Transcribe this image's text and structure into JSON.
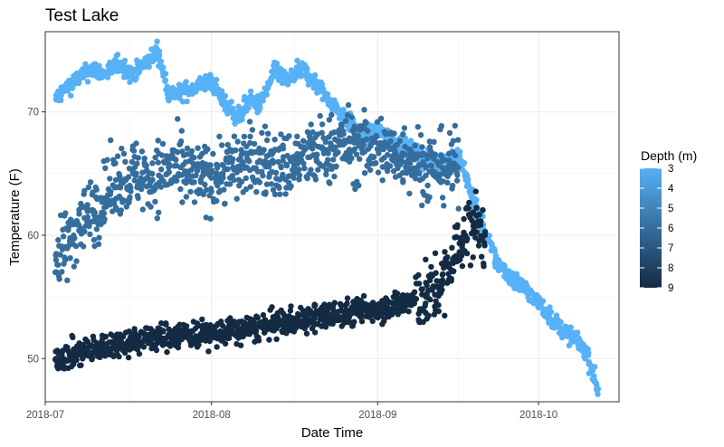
{
  "chart_data": {
    "type": "scatter",
    "title": "Test Lake",
    "xlabel": "Date Time",
    "ylabel": "Temperature (F)",
    "xlim": [
      "2018-07-01",
      "2018-10-16"
    ],
    "ylim": [
      46.5,
      76.5
    ],
    "x_ticks": [
      {
        "date": "2018-07-01",
        "label": "2018-07"
      },
      {
        "date": "2018-08-01",
        "label": "2018-08"
      },
      {
        "date": "2018-09-01",
        "label": "2018-09"
      },
      {
        "date": "2018-10-01",
        "label": "2018-10"
      }
    ],
    "y_ticks": [
      50,
      60,
      70
    ],
    "grid": true,
    "legend": {
      "title": "Depth (m)",
      "position": "right",
      "labels": [
        3,
        4,
        5,
        6,
        7,
        8,
        9
      ],
      "color_low": "#56B1F7",
      "color_high": "#132B43"
    },
    "series": [
      {
        "depth": 3,
        "x": [
          "2018-07-03",
          "2018-07-05",
          "2018-07-08",
          "2018-07-10",
          "2018-07-12",
          "2018-07-15",
          "2018-07-17",
          "2018-07-20",
          "2018-07-22",
          "2018-07-24",
          "2018-07-26",
          "2018-07-29",
          "2018-08-01",
          "2018-08-03",
          "2018-08-06",
          "2018-08-08",
          "2018-08-10",
          "2018-08-13",
          "2018-08-15",
          "2018-08-18",
          "2018-08-20",
          "2018-08-23",
          "2018-08-26",
          "2018-08-29",
          "2018-09-01",
          "2018-09-04",
          "2018-09-07",
          "2018-09-10",
          "2018-09-13",
          "2018-09-16",
          "2018-09-18",
          "2018-09-20",
          "2018-09-23",
          "2018-09-26",
          "2018-09-29",
          "2018-10-02",
          "2018-10-05",
          "2018-10-08",
          "2018-10-10",
          "2018-10-12"
        ],
        "y": [
          71.0,
          72.0,
          73.0,
          73.5,
          73.0,
          74.0,
          73.0,
          74.0,
          75.0,
          71.5,
          71.5,
          72.0,
          72.5,
          71.0,
          69.5,
          71.0,
          70.5,
          73.5,
          72.5,
          73.5,
          72.5,
          71.0,
          69.5,
          68.0,
          68.5,
          67.5,
          67.0,
          66.0,
          66.0,
          66.5,
          64.0,
          61.5,
          58.0,
          56.5,
          55.5,
          54.0,
          52.5,
          51.5,
          50.5,
          47.5
        ]
      },
      {
        "depth": 6,
        "x": [
          "2018-07-03",
          "2018-07-05",
          "2018-07-07",
          "2018-07-10",
          "2018-07-12",
          "2018-07-15",
          "2018-07-18",
          "2018-07-21",
          "2018-07-24",
          "2018-07-27",
          "2018-07-30",
          "2018-08-02",
          "2018-08-05",
          "2018-08-08",
          "2018-08-11",
          "2018-08-14",
          "2018-08-17",
          "2018-08-20",
          "2018-08-23",
          "2018-08-26",
          "2018-08-29",
          "2018-09-01",
          "2018-09-04",
          "2018-09-07",
          "2018-09-10",
          "2018-09-13",
          "2018-09-16"
        ],
        "y": [
          58.0,
          59.0,
          61.0,
          62.0,
          63.0,
          64.5,
          65.0,
          64.5,
          65.5,
          65.0,
          64.5,
          65.0,
          65.5,
          66.0,
          66.0,
          65.5,
          66.0,
          66.5,
          67.0,
          67.5,
          67.0,
          67.0,
          66.5,
          66.5,
          65.5,
          65.5,
          65.5
        ]
      },
      {
        "depth": 9,
        "x": [
          "2018-07-03",
          "2018-07-06",
          "2018-07-09",
          "2018-07-12",
          "2018-07-15",
          "2018-07-18",
          "2018-07-21",
          "2018-07-24",
          "2018-07-27",
          "2018-07-30",
          "2018-08-02",
          "2018-08-05",
          "2018-08-08",
          "2018-08-11",
          "2018-08-14",
          "2018-08-17",
          "2018-08-20",
          "2018-08-23",
          "2018-08-26",
          "2018-08-29",
          "2018-09-01",
          "2018-09-04",
          "2018-09-07",
          "2018-09-10",
          "2018-09-13",
          "2018-09-15",
          "2018-09-17",
          "2018-09-19",
          "2018-09-21"
        ],
        "y": [
          50.0,
          50.3,
          50.6,
          51.0,
          51.3,
          51.5,
          51.7,
          51.8,
          52.0,
          52.0,
          52.0,
          52.2,
          52.4,
          52.6,
          52.9,
          53.1,
          53.3,
          53.5,
          53.7,
          53.9,
          54.1,
          54.3,
          54.6,
          55.0,
          56.0,
          58.0,
          60.0,
          61.0,
          60.0
        ]
      }
    ]
  }
}
